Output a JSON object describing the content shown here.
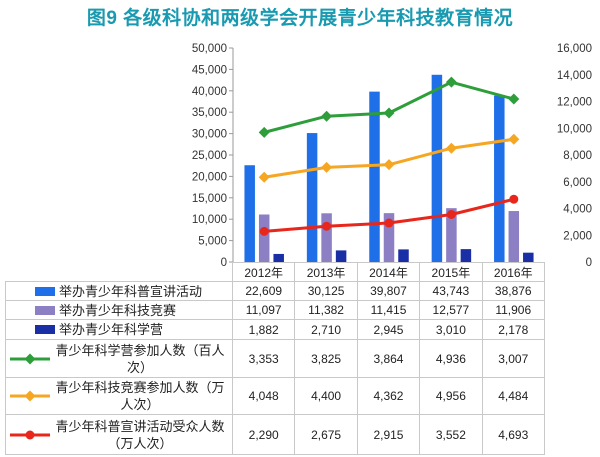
{
  "chart_data": {
    "type": "bar",
    "title": "图9 各级科协和两级学会开展青少年科技教育情况",
    "categories": [
      "2012年",
      "2013年",
      "2014年",
      "2015年",
      "2016年"
    ],
    "ylim": [
      0,
      50000
    ],
    "yticks": [
      0,
      5000,
      10000,
      15000,
      20000,
      25000,
      30000,
      35000,
      40000,
      45000,
      50000
    ],
    "y2lim": [
      0,
      16000
    ],
    "y2ticks": [
      0,
      2000,
      4000,
      6000,
      8000,
      10000,
      12000,
      14000,
      16000
    ],
    "lines_stacked": true,
    "grid": false,
    "legend": "data table below chart",
    "series": [
      {
        "name": "举办青少年科普宣讲活动",
        "type": "bar",
        "axis": "left",
        "color": "#1F70E8",
        "values": [
          22609,
          30125,
          39807,
          43743,
          38876
        ]
      },
      {
        "name": "举办青少年科技竞赛",
        "type": "bar",
        "axis": "left",
        "color": "#8C7FC4",
        "values": [
          11097,
          11382,
          11415,
          12577,
          11906
        ]
      },
      {
        "name": "举办青少年科学营",
        "type": "bar",
        "axis": "left",
        "color": "#1A2FA6",
        "values": [
          1882,
          2710,
          2945,
          3010,
          2178
        ]
      },
      {
        "name": "青少年科学营参加人数（百人次）",
        "type": "line",
        "axis": "right",
        "color": "#2E9E3B",
        "marker": "diamond",
        "values": [
          3353,
          3825,
          3864,
          4936,
          3007
        ]
      },
      {
        "name": "青少年科技竞赛参加人数（万人次）",
        "type": "line",
        "axis": "right",
        "color": "#F5A623",
        "marker": "diamond",
        "values": [
          4048,
          4400,
          4362,
          4956,
          4484
        ]
      },
      {
        "name": "青少年科普宣讲活动受众人数（万人次）",
        "type": "line",
        "axis": "right",
        "color": "#E8261C",
        "marker": "circle",
        "values": [
          2290,
          2675,
          2915,
          3552,
          4693
        ]
      }
    ]
  }
}
